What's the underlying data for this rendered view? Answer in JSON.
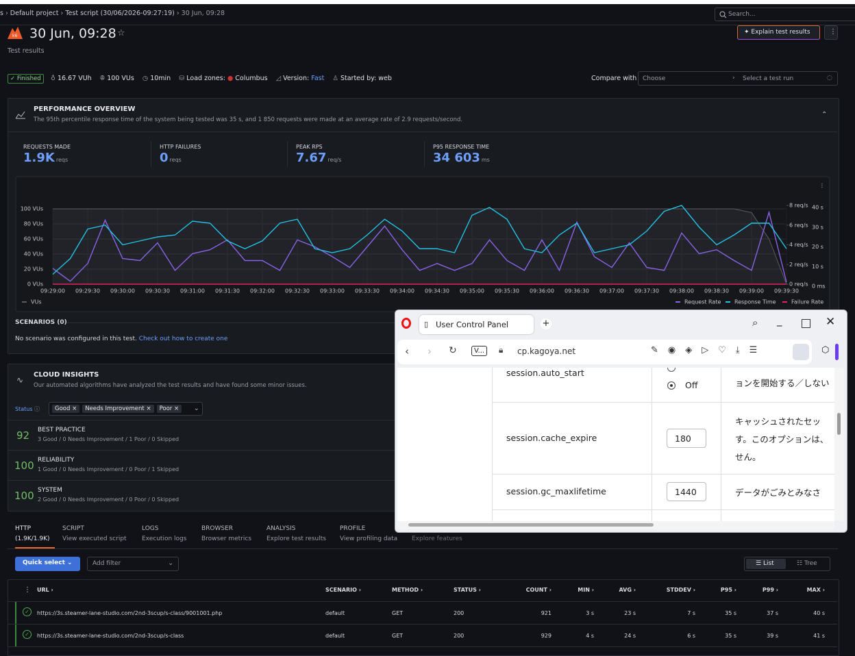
{
  "breadcrumb": [
    "s",
    "Default project",
    "Test script (30/06/2026-09:27:19)",
    "30 Jun, 09:28"
  ],
  "search": "Search...",
  "header": {
    "title": "30 Jun, 09:28",
    "subtitle": "Test results",
    "explain": "Explain test results"
  },
  "meta": {
    "status": "Finished",
    "vuh": "16.67 VUh",
    "vus": "100 VUs",
    "duration": "10min",
    "zones_label": "Load zones:",
    "zone": "Columbus",
    "version_label": "Version:",
    "version": "Fast",
    "started": "Started by: web"
  },
  "compare": {
    "label": "Compare with",
    "choose": "Choose",
    "select": "Select a test run"
  },
  "overview": {
    "title": "PERFORMANCE OVERVIEW",
    "description": "The 95th percentile response time of the system being tested was 35 s, and 1 850 requests were made at an average rate of 2.9 requests/second.",
    "stats": [
      {
        "label": "REQUESTS MADE",
        "value": "1.9K",
        "unit": "reqs"
      },
      {
        "label": "HTTP FAILURES",
        "value": "0",
        "unit": "reqs"
      },
      {
        "label": "PEAK RPS",
        "value": "7.67",
        "unit": "req/s"
      },
      {
        "label": "P95 RESPONSE TIME",
        "value": "34 603",
        "unit": "ms"
      }
    ]
  },
  "chart_data": {
    "type": "line",
    "x": [
      "09:29:00",
      "09:29:15",
      "09:29:30",
      "09:29:45",
      "09:30:00",
      "09:30:15",
      "09:30:30",
      "09:30:45",
      "09:31:00",
      "09:31:15",
      "09:31:30",
      "09:31:45",
      "09:32:00",
      "09:32:15",
      "09:32:30",
      "09:32:45",
      "09:33:00",
      "09:33:15",
      "09:33:30",
      "09:33:45",
      "09:34:00",
      "09:34:15",
      "09:34:30",
      "09:34:45",
      "09:35:00",
      "09:35:15",
      "09:35:30",
      "09:35:45",
      "09:36:00",
      "09:36:15",
      "09:36:30",
      "09:36:45",
      "09:37:00",
      "09:37:15",
      "09:37:30",
      "09:37:45",
      "09:38:00",
      "09:38:15",
      "09:38:30",
      "09:38:45",
      "09:39:00",
      "09:39:15",
      "09:39:30"
    ],
    "xlim": [
      "09:29:00",
      "09:39:30"
    ],
    "xticks": [
      "09:29:00",
      "09:29:30",
      "09:30:00",
      "09:30:30",
      "09:31:00",
      "09:31:30",
      "09:32:00",
      "09:32:30",
      "09:33:00",
      "09:33:30",
      "09:34:00",
      "09:34:30",
      "09:35:00",
      "09:35:30",
      "09:36:00",
      "09:36:30",
      "09:37:00",
      "09:37:30",
      "09:38:00",
      "09:38:30",
      "09:39:00",
      "09:39:30"
    ],
    "ylim": [
      0,
      100
    ],
    "yticks": [
      {
        "value": 0,
        "label": "0 VUs"
      },
      {
        "value": 20,
        "label": "20 VUs"
      },
      {
        "value": 40,
        "label": "40 VUs"
      },
      {
        "value": 60,
        "label": "60 VUs"
      },
      {
        "value": 80,
        "label": "80 VUs"
      },
      {
        "value": 100,
        "label": "100 VUs"
      }
    ],
    "y2lim": [
      0,
      8
    ],
    "y2ticks": [
      {
        "value": 0,
        "label": "0 req/s"
      },
      {
        "value": 2,
        "label": "2 req/s"
      },
      {
        "value": 4,
        "label": "4 req/s"
      },
      {
        "value": 6,
        "label": "6 req/s"
      },
      {
        "value": 8,
        "label": "8 req/s"
      }
    ],
    "y3lim": [
      0,
      40
    ],
    "y3ticks": [
      {
        "value": 0,
        "label": "0 ms"
      },
      {
        "value": 10,
        "label": "10 s"
      },
      {
        "value": 20,
        "label": "20 s"
      },
      {
        "value": 30,
        "label": "30 s"
      },
      {
        "value": 40,
        "label": "40 s"
      }
    ],
    "grid": true,
    "series": [
      {
        "name": "VUs",
        "color": "#5a5c63",
        "axis": "y",
        "values": [
          100,
          100,
          100,
          100,
          100,
          100,
          100,
          100,
          100,
          100,
          100,
          100,
          100,
          100,
          100,
          100,
          100,
          100,
          100,
          100,
          100,
          100,
          100,
          100,
          100,
          100,
          100,
          100,
          100,
          100,
          100,
          100,
          100,
          100,
          100,
          100,
          100,
          100,
          100,
          100,
          95,
          60,
          0
        ]
      },
      {
        "name": "Request Rate",
        "color": "#8a63e8",
        "axis": "y2",
        "values": [
          1.6,
          0.3,
          2.1,
          6.5,
          2.6,
          2.4,
          4.2,
          1.4,
          3.1,
          3.5,
          4.5,
          2.4,
          2.4,
          1.4,
          4.5,
          3.8,
          2.8,
          1.7,
          3.8,
          5.9,
          3.5,
          1.4,
          2.1,
          1.4,
          2.1,
          4.5,
          2.4,
          1.4,
          4.5,
          1.4,
          6.3,
          2.8,
          1.7,
          4.2,
          1.7,
          1.4,
          5.2,
          3.1,
          3.5,
          2.4,
          1.4,
          7.3,
          0.2
        ]
      },
      {
        "name": "Response Time",
        "color": "#23c3e6",
        "axis": "y3",
        "values": [
          5,
          13,
          28,
          30,
          20,
          22,
          24,
          25,
          32,
          31,
          22,
          18,
          22,
          31,
          33,
          18,
          16,
          18,
          25,
          33,
          27,
          18,
          18,
          16,
          35,
          39,
          33,
          18,
          16,
          25,
          31,
          16,
          18,
          20,
          27,
          37,
          40,
          29,
          20,
          25,
          31,
          31,
          18
        ]
      },
      {
        "name": "Failure Rate",
        "color": "#e0245e",
        "axis": "y2",
        "values": [
          0,
          0,
          0,
          0,
          0,
          0,
          0,
          0,
          0,
          0,
          0,
          0,
          0,
          0,
          0,
          0,
          0,
          0,
          0,
          0,
          0,
          0,
          0,
          0,
          0,
          0,
          0,
          0,
          0,
          0,
          0,
          0,
          0,
          0,
          0,
          0,
          0,
          0,
          0,
          0,
          0,
          0,
          0
        ]
      }
    ]
  },
  "scenarios": {
    "title": "SCENARIOS (0)",
    "text": "No scenario was configured in this test.",
    "link": "Check out how to create one"
  },
  "insights": {
    "title": "CLOUD INSIGHTS",
    "description": "Our automated algorithms have analyzed the test results and have found some minor issues.",
    "status_label": "Status",
    "chips": [
      "Good",
      "Needs Improvement",
      "Poor"
    ],
    "rows": [
      {
        "score": "92",
        "name": "BEST PRACTICE",
        "detail": "3 Good / 0 Needs Improvement / 1 Poor / 0 Skipped"
      },
      {
        "score": "100",
        "name": "RELIABILITY",
        "detail": "1 Good / 0 Needs Improvement / 0 Poor / 1 Skipped"
      },
      {
        "score": "100",
        "name": "SYSTEM",
        "detail": "2 Good / 0 Needs Improvement / 0 Poor / 0 Skipped"
      }
    ]
  },
  "tabs": [
    {
      "name": "HTTP",
      "sub": "(1.9K/1.9K)"
    },
    {
      "name": "SCRIPT",
      "sub": "View executed script"
    },
    {
      "name": "LOGS",
      "sub": "Execution logs"
    },
    {
      "name": "BROWSER",
      "sub": "Browser metrics"
    },
    {
      "name": "ANALYSIS",
      "sub": "Explore test results"
    },
    {
      "name": "PROFILE",
      "sub": "View profiling data"
    }
  ],
  "extra_tab": "Explore features",
  "toolbar": {
    "quick_select": "Quick select",
    "add_filter": "Add filter",
    "list": "List",
    "tree": "Tree"
  },
  "table": {
    "columns": [
      "URL",
      "SCENARIO",
      "METHOD",
      "STATUS",
      "COUNT",
      "MIN",
      "AVG",
      "STDDEV",
      "P95",
      "P99",
      "MAX"
    ],
    "rows": [
      [
        "https://3s.steamer-lane-studio.com/2nd-3scup/s-class/9001001.php",
        "default",
        "GET",
        "200",
        "921",
        "3 s",
        "23 s",
        "7 s",
        "35 s",
        "37 s",
        "40 s"
      ],
      [
        "https://3s.steamer-lane-studio.com/2nd-3scup/s-class",
        "default",
        "GET",
        "200",
        "929",
        "4 s",
        "24 s",
        "6 s",
        "35 s",
        "39 s",
        "41 s"
      ]
    ]
  },
  "popup": {
    "tab": "User Control Panel",
    "vtab": "V...",
    "url": "cp.kagoya.net",
    "rows": [
      {
        "name": "session.auto_start",
        "value": "Off",
        "desc": [
          "ョンを開始する／しない"
        ]
      },
      {
        "name": "session.cache_expire",
        "value": "180",
        "desc": [
          "キャッシュされたセッ",
          "す。このオプションは、",
          "せん。"
        ]
      },
      {
        "name": "session.gc_maxlifetime",
        "value": "1440",
        "desc": [
          "データがごみとみなさ"
        ]
      }
    ]
  }
}
